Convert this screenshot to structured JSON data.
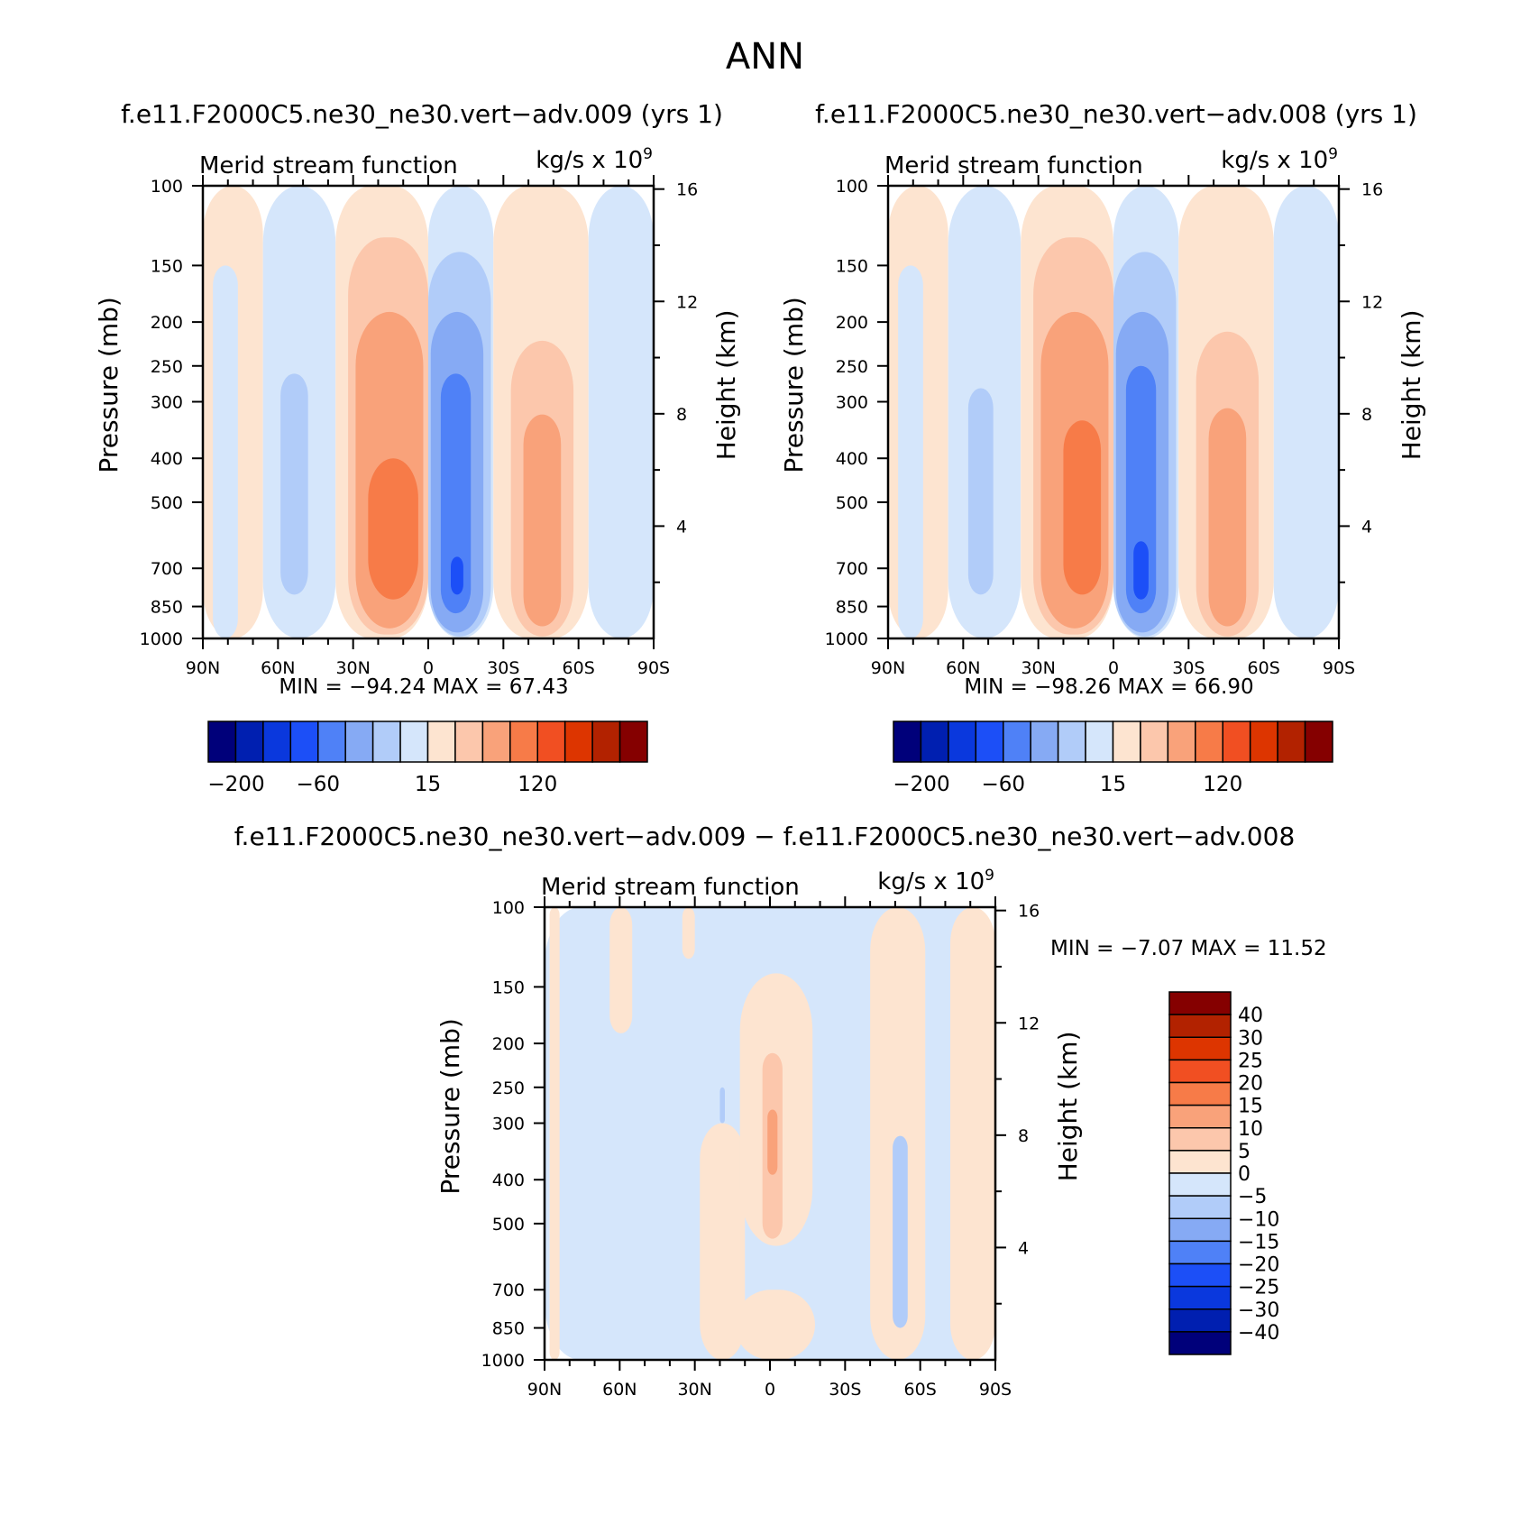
{
  "page_title": "ANN",
  "chart_data": [
    {
      "id": "test",
      "type": "heatmap",
      "subtype": "latitude-pressure filled contour",
      "title": "f.e11.F2000C5.ne30_ne30.vert−adv.009 (yrs 1)",
      "left_string": "Merid stream function",
      "right_string": "kg/s x 10",
      "right_string_exponent": "9",
      "xlabel": "",
      "ylabel": "Pressure (mb)",
      "ylabel_right": "Height (km)",
      "x_ticks": [
        "90N",
        "60N",
        "30N",
        "0",
        "30S",
        "60S",
        "90S"
      ],
      "x_values": [
        90,
        60,
        30,
        0,
        -30,
        -60,
        -90
      ],
      "xlim": [
        90,
        -90
      ],
      "y_ticks": [
        "100",
        "150",
        "200",
        "250",
        "300",
        "400",
        "500",
        "700",
        "850",
        "1000"
      ],
      "y_values": [
        100,
        150,
        200,
        250,
        300,
        400,
        500,
        700,
        850,
        1000
      ],
      "ylim": [
        1000,
        100
      ],
      "height_ticks": [
        "4",
        "8",
        "12",
        "16"
      ],
      "height_values": [
        4,
        8,
        12,
        16
      ],
      "min_label": "MIN =",
      "min_value": "−94.24",
      "max_label": "MAX =",
      "max_value": "67.43",
      "colorbar_orientation": "horizontal",
      "colorbar_labels": [
        "−200",
        "−60",
        "15",
        "120"
      ],
      "colorbar_colors": [
        "#00007a",
        "#001fb0",
        "#0a38dd",
        "#1c4ff7",
        "#4f81f7",
        "#86aaf4",
        "#b1ccf9",
        "#d5e6fb",
        "#fde4d0",
        "#fcc7ac",
        "#f9a27a",
        "#f77b48",
        "#f14f22",
        "#dd3500",
        "#b22200",
        "#850000"
      ],
      "cells": [
        {
          "lat": [
            90,
            66
          ],
          "p": [
            100,
            1000
          ],
          "c": 8
        },
        {
          "lat": [
            86,
            76
          ],
          "p": [
            150,
            1000
          ],
          "c": 7
        },
        {
          "lat": [
            66,
            37
          ],
          "p": [
            100,
            1000
          ],
          "c": 7
        },
        {
          "lat": [
            59,
            48
          ],
          "p": [
            260,
            800
          ],
          "c": 6
        },
        {
          "lat": [
            37,
            0
          ],
          "p": [
            100,
            1000
          ],
          "c": 8
        },
        {
          "lat": [
            32,
            0
          ],
          "p": [
            130,
            980
          ],
          "c": 9
        },
        {
          "lat": [
            29,
            2
          ],
          "p": [
            190,
            950
          ],
          "c": 10
        },
        {
          "lat": [
            24,
            4
          ],
          "p": [
            400,
            820
          ],
          "c": 11
        },
        {
          "lat": [
            0,
            -26
          ],
          "p": [
            100,
            1000
          ],
          "c": 7
        },
        {
          "lat": [
            0,
            -25
          ],
          "p": [
            140,
            990
          ],
          "c": 6
        },
        {
          "lat": [
            -1,
            -22
          ],
          "p": [
            190,
            970
          ],
          "c": 5
        },
        {
          "lat": [
            -5,
            -17
          ],
          "p": [
            260,
            880
          ],
          "c": 4
        },
        {
          "lat": [
            -9,
            -14
          ],
          "p": [
            660,
            800
          ],
          "c": 3
        },
        {
          "lat": [
            -26,
            -64
          ],
          "p": [
            100,
            1000
          ],
          "c": 8
        },
        {
          "lat": [
            -33,
            -58
          ],
          "p": [
            220,
            990
          ],
          "c": 9
        },
        {
          "lat": [
            -38,
            -53
          ],
          "p": [
            320,
            940
          ],
          "c": 10
        },
        {
          "lat": [
            -64,
            -90
          ],
          "p": [
            100,
            1000
          ],
          "c": 7
        }
      ]
    },
    {
      "id": "control",
      "type": "heatmap",
      "subtype": "latitude-pressure filled contour",
      "title": "f.e11.F2000C5.ne30_ne30.vert−adv.008 (yrs 1)",
      "left_string": "Merid stream function",
      "right_string": "kg/s x 10",
      "right_string_exponent": "9",
      "xlabel": "",
      "ylabel": "Pressure (mb)",
      "ylabel_right": "Height (km)",
      "x_ticks": [
        "90N",
        "60N",
        "30N",
        "0",
        "30S",
        "60S",
        "90S"
      ],
      "x_values": [
        90,
        60,
        30,
        0,
        -30,
        -60,
        -90
      ],
      "xlim": [
        90,
        -90
      ],
      "y_ticks": [
        "100",
        "150",
        "200",
        "250",
        "300",
        "400",
        "500",
        "700",
        "850",
        "1000"
      ],
      "y_values": [
        100,
        150,
        200,
        250,
        300,
        400,
        500,
        700,
        850,
        1000
      ],
      "ylim": [
        1000,
        100
      ],
      "height_ticks": [
        "4",
        "8",
        "12",
        "16"
      ],
      "height_values": [
        4,
        8,
        12,
        16
      ],
      "min_label": "MIN =",
      "min_value": "−98.26",
      "max_label": "MAX =",
      "max_value": "66.90",
      "colorbar_orientation": "horizontal",
      "colorbar_labels": [
        "−200",
        "−60",
        "15",
        "120"
      ],
      "colorbar_colors": [
        "#00007a",
        "#001fb0",
        "#0a38dd",
        "#1c4ff7",
        "#4f81f7",
        "#86aaf4",
        "#b1ccf9",
        "#d5e6fb",
        "#fde4d0",
        "#fcc7ac",
        "#f9a27a",
        "#f77b48",
        "#f14f22",
        "#dd3500",
        "#b22200",
        "#850000"
      ],
      "cells": [
        {
          "lat": [
            90,
            66
          ],
          "p": [
            100,
            1000
          ],
          "c": 8
        },
        {
          "lat": [
            86,
            76
          ],
          "p": [
            150,
            1000
          ],
          "c": 7
        },
        {
          "lat": [
            66,
            37
          ],
          "p": [
            100,
            1000
          ],
          "c": 7
        },
        {
          "lat": [
            58,
            48
          ],
          "p": [
            280,
            800
          ],
          "c": 6
        },
        {
          "lat": [
            37,
            0
          ],
          "p": [
            100,
            1000
          ],
          "c": 8
        },
        {
          "lat": [
            32,
            0
          ],
          "p": [
            130,
            980
          ],
          "c": 9
        },
        {
          "lat": [
            29,
            2
          ],
          "p": [
            190,
            950
          ],
          "c": 10
        },
        {
          "lat": [
            20,
            5
          ],
          "p": [
            330,
            800
          ],
          "c": 11
        },
        {
          "lat": [
            0,
            -26
          ],
          "p": [
            100,
            1000
          ],
          "c": 7
        },
        {
          "lat": [
            0,
            -25
          ],
          "p": [
            140,
            990
          ],
          "c": 6
        },
        {
          "lat": [
            -1,
            -22
          ],
          "p": [
            190,
            970
          ],
          "c": 5
        },
        {
          "lat": [
            -5,
            -17
          ],
          "p": [
            250,
            880
          ],
          "c": 4
        },
        {
          "lat": [
            -8,
            -14
          ],
          "p": [
            610,
            820
          ],
          "c": 3
        },
        {
          "lat": [
            -26,
            -64
          ],
          "p": [
            100,
            1000
          ],
          "c": 8
        },
        {
          "lat": [
            -33,
            -58
          ],
          "p": [
            210,
            990
          ],
          "c": 9
        },
        {
          "lat": [
            -38,
            -53
          ],
          "p": [
            310,
            940
          ],
          "c": 10
        },
        {
          "lat": [
            -64,
            -90
          ],
          "p": [
            100,
            1000
          ],
          "c": 7
        }
      ]
    },
    {
      "id": "difference",
      "type": "heatmap",
      "subtype": "latitude-pressure filled contour",
      "title": "f.e11.F2000C5.ne30_ne30.vert−adv.009 − f.e11.F2000C5.ne30_ne30.vert−adv.008",
      "left_string": "Merid stream function",
      "right_string": "kg/s x 10",
      "right_string_exponent": "9",
      "xlabel": "",
      "ylabel": "Pressure (mb)",
      "ylabel_right": "Height (km)",
      "x_ticks": [
        "90N",
        "60N",
        "30N",
        "0",
        "30S",
        "60S",
        "90S"
      ],
      "x_values": [
        90,
        60,
        30,
        0,
        -30,
        -60,
        -90
      ],
      "xlim": [
        90,
        -90
      ],
      "y_ticks": [
        "100",
        "150",
        "200",
        "250",
        "300",
        "400",
        "500",
        "700",
        "850",
        "1000"
      ],
      "y_values": [
        100,
        150,
        200,
        250,
        300,
        400,
        500,
        700,
        850,
        1000
      ],
      "ylim": [
        1000,
        100
      ],
      "height_ticks": [
        "4",
        "8",
        "12",
        "16"
      ],
      "height_values": [
        4,
        8,
        12,
        16
      ],
      "min_label": "MIN =",
      "min_value": "−7.07",
      "max_label": "MAX =",
      "max_value": "11.52",
      "colorbar_orientation": "vertical",
      "colorbar_labels": [
        "40",
        "30",
        "25",
        "20",
        "15",
        "10",
        "5",
        "0",
        "−5",
        "−10",
        "−15",
        "−20",
        "−25",
        "−30",
        "−40"
      ],
      "colorbar_colors": [
        "#850000",
        "#b22200",
        "#dd3500",
        "#f14f22",
        "#f77b48",
        "#f9a27a",
        "#fcc7ac",
        "#fde4d0",
        "#d5e6fb",
        "#b1ccf9",
        "#86aaf4",
        "#4f81f7",
        "#1c4ff7",
        "#0a38dd",
        "#001fb0",
        "#00007a"
      ],
      "cells": [
        {
          "lat": [
            90,
            -90
          ],
          "p": [
            100,
            1000
          ],
          "c": 7
        },
        {
          "lat": [
            88,
            84
          ],
          "p": [
            100,
            1000
          ],
          "c": 8
        },
        {
          "lat": [
            64,
            55
          ],
          "p": [
            100,
            190
          ],
          "c": 8
        },
        {
          "lat": [
            35,
            30
          ],
          "p": [
            100,
            130
          ],
          "c": 8
        },
        {
          "lat": [
            28,
            10
          ],
          "p": [
            300,
            1000
          ],
          "c": 8
        },
        {
          "lat": [
            14,
            -18
          ],
          "p": [
            700,
            1000
          ],
          "c": 8
        },
        {
          "lat": [
            12,
            -17
          ],
          "p": [
            140,
            560
          ],
          "c": 8
        },
        {
          "lat": [
            3,
            -5
          ],
          "p": [
            210,
            540
          ],
          "c": 9
        },
        {
          "lat": [
            1,
            -3
          ],
          "p": [
            280,
            390
          ],
          "c": 10
        },
        {
          "lat": [
            20,
            18
          ],
          "p": [
            250,
            300
          ],
          "c": 6
        },
        {
          "lat": [
            -40,
            -62
          ],
          "p": [
            100,
            1000
          ],
          "c": 8
        },
        {
          "lat": [
            -49,
            -55
          ],
          "p": [
            320,
            850
          ],
          "c": 6
        },
        {
          "lat": [
            -68,
            -72
          ],
          "p": [
            100,
            1000
          ],
          "c": 7
        },
        {
          "lat": [
            -72,
            -90
          ],
          "p": [
            100,
            1000
          ],
          "c": 8
        }
      ]
    }
  ]
}
